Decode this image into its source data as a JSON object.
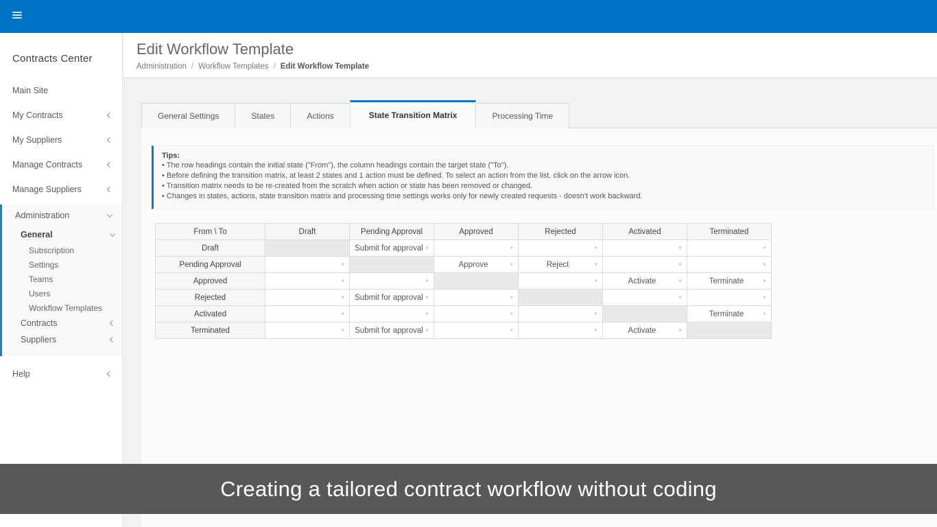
{
  "topbar": {
    "accent_color": "#0173c7"
  },
  "sidebar": {
    "title": "Contracts Center",
    "items_top": [
      {
        "label": "Main Site",
        "chevron": "none"
      },
      {
        "label": "My Contracts",
        "chevron": "left"
      },
      {
        "label": "My Suppliers",
        "chevron": "left"
      },
      {
        "label": "Manage Contracts",
        "chevron": "left"
      },
      {
        "label": "Manage Suppliers",
        "chevron": "left"
      }
    ],
    "admin_section": {
      "label": "Administration",
      "chevron": "down",
      "border_color": "#35799e",
      "children": [
        {
          "label": "General",
          "chevron": "down",
          "bold": true,
          "children": [
            {
              "label": "Subscription"
            },
            {
              "label": "Settings"
            },
            {
              "label": "Teams"
            },
            {
              "label": "Users"
            },
            {
              "label": "Workflow Templates"
            }
          ]
        },
        {
          "label": "Contracts",
          "chevron": "left"
        },
        {
          "label": "Suppliers",
          "chevron": "left"
        }
      ]
    },
    "items_bottom": [
      {
        "label": "Help",
        "chevron": "left"
      }
    ]
  },
  "header": {
    "title": "Edit Workflow Template",
    "breadcrumb": [
      {
        "label": "Administration",
        "current": false
      },
      {
        "label": "Workflow Templates",
        "current": false
      },
      {
        "label": "Edit Workflow Template",
        "current": true
      }
    ],
    "separator": "/"
  },
  "tabs": [
    {
      "label": "General Settings",
      "active": false
    },
    {
      "label": "States",
      "active": false
    },
    {
      "label": "Actions",
      "active": false
    },
    {
      "label": "State Transition Matrix",
      "active": true
    },
    {
      "label": "Processing Time",
      "active": false
    }
  ],
  "tips": {
    "heading": "Tips:",
    "bullet": "•",
    "lines": [
      "The row headings contain the initial state (\"From\"), the column headings contain the target state (\"To\").",
      "Before defining the transition matrix, at least 2 states and 1 action must be defined. To select an action from the list, click on the arrow icon.",
      "Transition matrix needs to be re-created from the scratch when action or state has been removed or changed.",
      "Changes in states, actions, state transition matrix and processing time settings works only for newly created requests - doesn't work backward."
    ]
  },
  "matrix": {
    "corner_label": "From \\ To",
    "columns": [
      "Draft",
      "Pending Approval",
      "Approved",
      "Rejected",
      "Activated",
      "Terminated"
    ],
    "rows": [
      {
        "from": "Draft",
        "cells": [
          null,
          "Submit for approval",
          "",
          "",
          "",
          ""
        ]
      },
      {
        "from": "Pending Approval",
        "cells": [
          "",
          null,
          "Approve",
          "Reject",
          "",
          ""
        ]
      },
      {
        "from": "Approved",
        "cells": [
          "",
          "",
          null,
          "",
          "Activate",
          "Terminate"
        ]
      },
      {
        "from": "Rejected",
        "cells": [
          "",
          "Submit for approval",
          "",
          null,
          "",
          ""
        ]
      },
      {
        "from": "Activated",
        "cells": [
          "",
          "",
          "",
          "",
          null,
          "Terminate"
        ]
      },
      {
        "from": "Terminated",
        "cells": [
          "",
          "Submit for approval",
          "",
          "",
          "Activate",
          null
        ]
      }
    ],
    "dropdown_arrow": "▼"
  },
  "caption": "Creating a tailored contract workflow without coding",
  "colors": {
    "topbar_blue": "#0173c7",
    "tab_accent": "#1673c1",
    "admin_border_teal": "#35799e",
    "caption_bg": "#58585a",
    "diagonal_cell": "#e9e9ea"
  }
}
